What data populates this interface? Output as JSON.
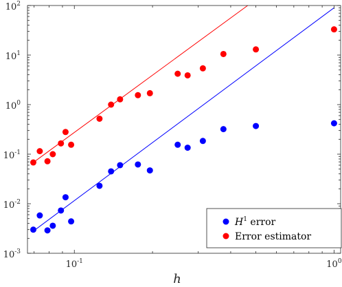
{
  "chart_data": {
    "type": "scatter",
    "title": "",
    "xlabel": "h",
    "ylabel": "",
    "xscale": "log",
    "yscale": "log",
    "xlim": [
      0.066,
      1.06
    ],
    "ylim": [
      0.001,
      100
    ],
    "x_ticks": [
      {
        "value": 0.1,
        "base": "10",
        "exp": "-1"
      },
      {
        "value": 1,
        "base": "10",
        "exp": "0"
      }
    ],
    "y_ticks": [
      {
        "value": 0.001,
        "base": "10",
        "exp": "-3"
      },
      {
        "value": 0.01,
        "base": "10",
        "exp": "-2"
      },
      {
        "value": 0.1,
        "base": "10",
        "exp": "-1"
      },
      {
        "value": 1,
        "base": "10",
        "exp": "0"
      },
      {
        "value": 10,
        "base": "10",
        "exp": "1"
      },
      {
        "value": 100,
        "base": "10",
        "exp": "2"
      }
    ],
    "grid": false,
    "legend_position": "bottom-right",
    "series": [
      {
        "name_prefix": "H",
        "name_sup": "1",
        "name_suffix": " error",
        "color": "#0000ff",
        "x": [
          1.0,
          0.5,
          0.375,
          0.3125,
          0.273,
          0.25,
          0.1954,
          0.1757,
          0.15,
          0.1385,
          0.125,
          0.0972,
          0.0925,
          0.0888,
          0.0826,
          0.0788,
          0.0736,
          0.0695
        ],
        "y": [
          0.42,
          0.37,
          0.32,
          0.185,
          0.135,
          0.155,
          0.047,
          0.062,
          0.06,
          0.045,
          0.023,
          0.0044,
          0.0135,
          0.0073,
          0.0036,
          0.0029,
          0.0058,
          0.003
        ]
      },
      {
        "name_prefix": "",
        "name_sup": "",
        "name_suffix": "Error estimator",
        "color": "#ff0000",
        "x": [
          1.0,
          0.5,
          0.375,
          0.3125,
          0.273,
          0.25,
          0.1954,
          0.1757,
          0.15,
          0.1385,
          0.125,
          0.0972,
          0.0925,
          0.0888,
          0.0826,
          0.0788,
          0.0736,
          0.0695
        ],
        "y": [
          33,
          13,
          10.5,
          5.4,
          3.9,
          4.2,
          1.7,
          1.55,
          1.28,
          1.0,
          0.52,
          0.155,
          0.28,
          0.165,
          0.1,
          0.072,
          0.115,
          0.068
        ]
      }
    ],
    "reference_lines": [
      {
        "color": "#0000ff",
        "x": [
          0.0695,
          1.0
        ],
        "y": [
          0.0028,
          90
        ]
      },
      {
        "color": "#ff0000",
        "x": [
          0.0695,
          0.465
        ],
        "y": [
          0.068,
          100
        ]
      }
    ]
  }
}
